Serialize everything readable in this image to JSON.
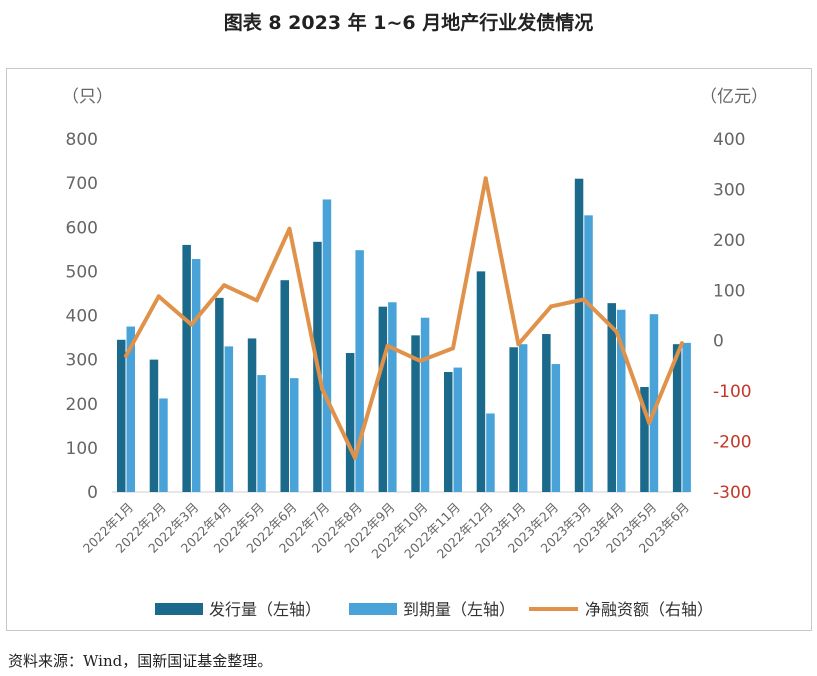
{
  "page": {
    "title": "图表 8  2023 年 1~6 月地产行业发债情况",
    "source": "资料来源：Wind，国新国证基金整理。"
  },
  "chart_data": {
    "type": "bar",
    "title": "图表 8  2023 年 1~6 月地产行业发债情况",
    "left_unit": "（只）",
    "right_unit": "（亿元）",
    "categories": [
      "2022年1月",
      "2022年2月",
      "2022年3月",
      "2022年4月",
      "2022年5月",
      "2022年6月",
      "2022年7月",
      "2022年8月",
      "2022年9月",
      "2022年10月",
      "2022年11月",
      "2022年12月",
      "2023年1月",
      "2023年2月",
      "2023年3月",
      "2023年4月",
      "2023年5月",
      "2023年6月"
    ],
    "ylim_left": [
      0,
      800
    ],
    "yticks_left": [
      "0",
      "100",
      "200",
      "300",
      "400",
      "500",
      "600",
      "700",
      "800"
    ],
    "ylim_right": [
      -300,
      400
    ],
    "yticks_right": [
      "400",
      "300",
      "200",
      "100",
      "0",
      "-100",
      "-200",
      "-300"
    ],
    "series": [
      {
        "name": "发行量（左轴）",
        "axis": "left",
        "kind": "bar",
        "values": [
          345,
          300,
          560,
          440,
          348,
          480,
          567,
          315,
          420,
          355,
          272,
          500,
          328,
          358,
          710,
          428,
          238,
          335
        ]
      },
      {
        "name": "到期量（左轴）",
        "axis": "left",
        "kind": "bar",
        "values": [
          375,
          212,
          528,
          330,
          265,
          258,
          663,
          548,
          430,
          395,
          282,
          178,
          335,
          290,
          627,
          413,
          403,
          338
        ]
      },
      {
        "name": "净融资额（右轴）",
        "axis": "right",
        "kind": "line",
        "values": [
          -30,
          88,
          32,
          110,
          80,
          222,
          -96,
          -232,
          -10,
          -40,
          -15,
          322,
          -7,
          68,
          82,
          18,
          -163,
          -5
        ]
      }
    ],
    "colors": {
      "issue": "#1b6a8c",
      "maturity": "#4aa3d8",
      "net": "#e0914a",
      "neg_tick": "#c0392b"
    },
    "grid": false,
    "legend_position": "bottom"
  }
}
